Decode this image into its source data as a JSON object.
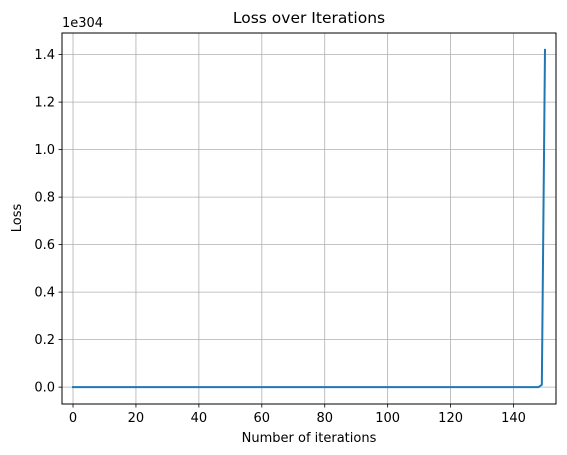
{
  "chart_data": {
    "type": "line",
    "title": "Loss over Iterations",
    "xlabel": "Number of iterations",
    "ylabel": "Loss",
    "y_offset_label": "1e304",
    "xlim": [
      -3.5,
      153.5
    ],
    "ylim": [
      -0.071,
      1.491
    ],
    "x_ticks": [
      0,
      20,
      40,
      60,
      80,
      100,
      120,
      140
    ],
    "x_tick_labels": [
      "0",
      "20",
      "40",
      "60",
      "80",
      "100",
      "120",
      "140"
    ],
    "y_ticks": [
      0.0,
      0.2,
      0.4,
      0.6,
      0.8,
      1.0,
      1.2,
      1.4
    ],
    "y_tick_labels": [
      "0.0",
      "0.2",
      "0.4",
      "0.6",
      "0.8",
      "1.0",
      "1.2",
      "1.4"
    ],
    "grid": true,
    "series": [
      {
        "color": "#1f77b4",
        "x": [
          0,
          10,
          20,
          30,
          40,
          50,
          60,
          70,
          80,
          90,
          100,
          110,
          120,
          130,
          140,
          145,
          148,
          149,
          150
        ],
        "y": [
          0,
          0,
          0,
          0,
          0,
          0,
          0,
          0,
          0,
          0,
          0,
          0,
          0,
          0,
          0,
          0,
          0.0001,
          0.01,
          1.42
        ]
      }
    ]
  }
}
